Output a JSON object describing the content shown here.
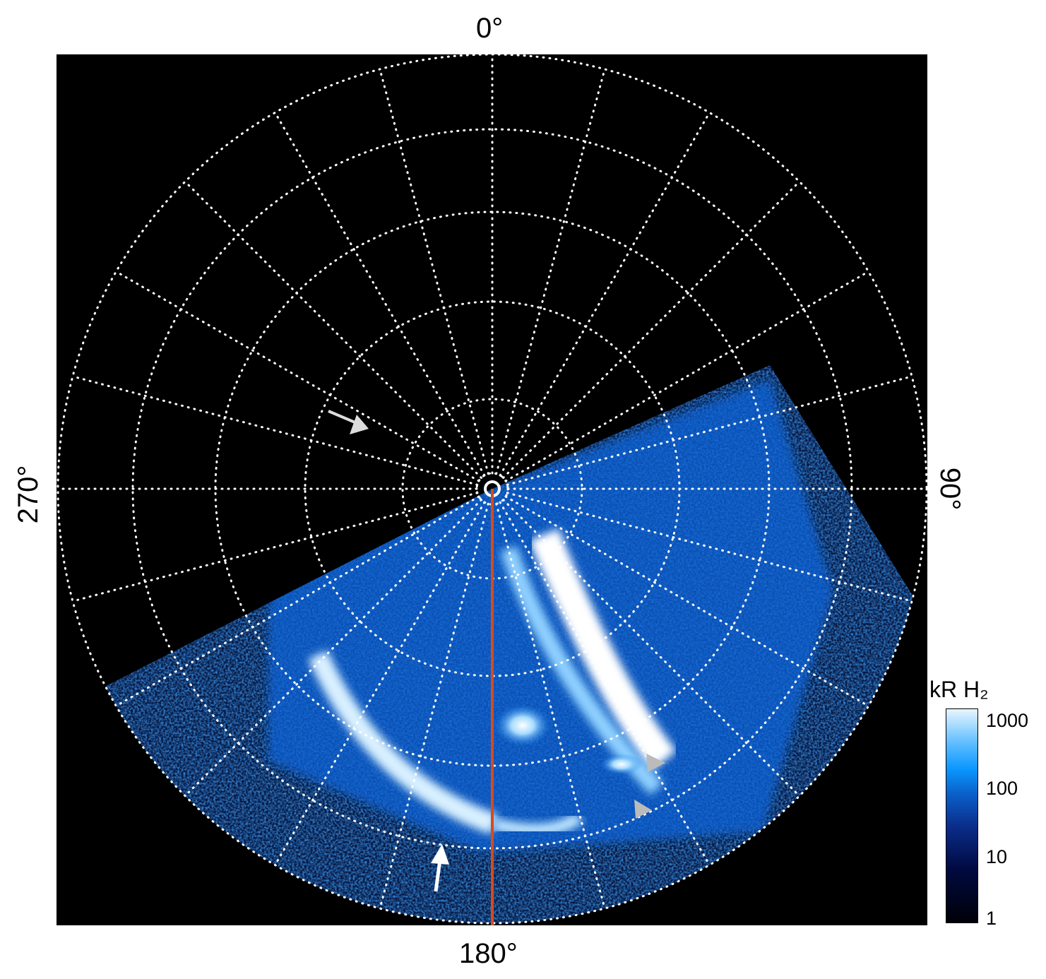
{
  "figure": {
    "longitude_labels": {
      "top": "0°",
      "right": "90°",
      "bottom": "180°",
      "left": "270°"
    },
    "colorbar": {
      "label": "kR H₂",
      "scale": "log",
      "range": [
        1,
        1000
      ],
      "ticks": [
        "1000",
        "100",
        "10",
        "1"
      ],
      "colors": [
        "#000008",
        "#000a40",
        "#0a5fc8",
        "#0a97ff",
        "#e8f6ff"
      ]
    },
    "grid": {
      "meridian_step_deg": 15,
      "latitude_circles": 5,
      "style": "dotted white"
    },
    "reference_meridian_color": "#d84a1b",
    "annotations": [
      "white arrow upper-left",
      "white arrow bottom",
      "grey arrowhead right",
      "grey arrowhead lower-right"
    ]
  }
}
